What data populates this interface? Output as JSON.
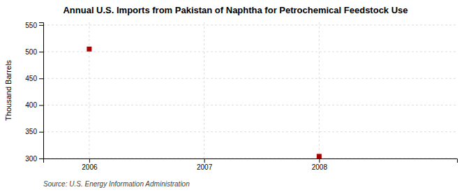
{
  "chart_data": {
    "type": "scatter",
    "title": "Annual U.S. Imports from Pakistan of Naphtha for Petrochemical Feedstock Use",
    "ylabel": "Thousand Barrels",
    "source": "Source: U.S. Energy Information Administration",
    "x": [
      2006,
      2008
    ],
    "values": [
      505,
      304
    ],
    "xlim": [
      2005.6,
      2009.2
    ],
    "ylim": [
      300,
      555
    ],
    "xticks": [
      2006,
      2007,
      2008
    ],
    "yticks": [
      300,
      350,
      400,
      450,
      500,
      550
    ],
    "color": "#AA0000",
    "marker": "square",
    "grid": true
  }
}
